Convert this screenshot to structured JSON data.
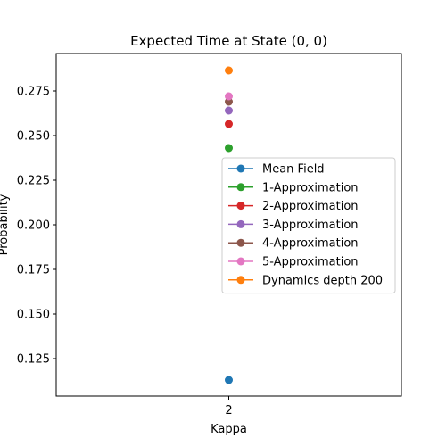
{
  "chart_data": {
    "type": "scatter",
    "title": "Expected Time at State (0, 0)",
    "xlabel": "Kappa",
    "ylabel": "Probability",
    "x": [
      2
    ],
    "x_tick_labels": [
      "2"
    ],
    "y_ticks": [
      0.125,
      0.15,
      0.175,
      0.2,
      0.225,
      0.25,
      0.275
    ],
    "y_tick_labels": [
      "0.125",
      "0.150",
      "0.175",
      "0.200",
      "0.225",
      "0.250",
      "0.275"
    ],
    "ylim": [
      0.104,
      0.296
    ],
    "grid": false,
    "legend_position": "center-right",
    "series": [
      {
        "name": "Mean Field",
        "values": [
          0.113
        ],
        "color": "#1f77b4"
      },
      {
        "name": "1-Approximation",
        "values": [
          0.243
        ],
        "color": "#2ca02c"
      },
      {
        "name": "2-Approximation",
        "values": [
          0.2565
        ],
        "color": "#d62728"
      },
      {
        "name": "3-Approximation",
        "values": [
          0.264
        ],
        "color": "#9467bd"
      },
      {
        "name": "4-Approximation",
        "values": [
          0.269
        ],
        "color": "#8c564b"
      },
      {
        "name": "5-Approximation",
        "values": [
          0.272
        ],
        "color": "#e377c2"
      },
      {
        "name": "Dynamics depth 200",
        "values": [
          0.2865
        ],
        "color": "#ff7f0e"
      }
    ]
  }
}
